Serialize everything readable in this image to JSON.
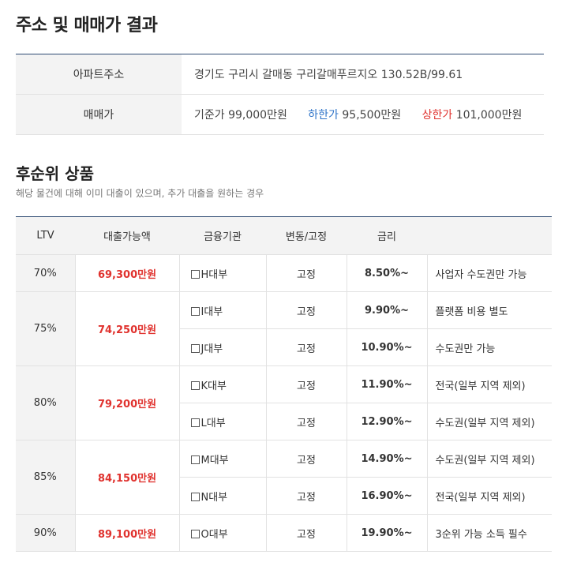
{
  "title": "주소 및 매매가 결과",
  "address_table": {
    "address_label": "아파트주소",
    "address_value": "경기도 구리시 갈매동 구리갈매푸르지오 130.52B/99.61",
    "price_label": "매매가",
    "base_label": "기준가",
    "base_value": "99,000만원",
    "low_label": "하한가",
    "low_value": "95,500만원",
    "high_label": "상한가",
    "high_value": "101,000만원"
  },
  "section": {
    "title": "후순위 상품",
    "description": "해당 물건에 대해 이미 대출이 있으며, 추가 대출을 원하는 경우"
  },
  "loan_table": {
    "headers": [
      "LTV",
      "대출가능액",
      "금융기관",
      "변동/고정",
      "금리",
      ""
    ],
    "groups": [
      {
        "ltv": "70%",
        "amount": "69,300만원",
        "rows": [
          {
            "institution": "H대부",
            "type": "고정",
            "rate": "8.50%~",
            "note": "사업자 수도권만 가능"
          }
        ]
      },
      {
        "ltv": "75%",
        "amount": "74,250만원",
        "rows": [
          {
            "institution": "I대부",
            "type": "고정",
            "rate": "9.90%~",
            "note": "플랫폼 비용 별도"
          },
          {
            "institution": "J대부",
            "type": "고정",
            "rate": "10.90%~",
            "note": "수도권만 가능"
          }
        ]
      },
      {
        "ltv": "80%",
        "amount": "79,200만원",
        "rows": [
          {
            "institution": "K대부",
            "type": "고정",
            "rate": "11.90%~",
            "note": "전국(일부 지역 제외)"
          },
          {
            "institution": "L대부",
            "type": "고정",
            "rate": "12.90%~",
            "note": "수도권(일부 지역 제외)"
          }
        ]
      },
      {
        "ltv": "85%",
        "amount": "84,150만원",
        "rows": [
          {
            "institution": "M대부",
            "type": "고정",
            "rate": "14.90%~",
            "note": "수도권(일부 지역 제외)"
          },
          {
            "institution": "N대부",
            "type": "고정",
            "rate": "16.90%~",
            "note": "전국(일부 지역 제외)"
          }
        ]
      },
      {
        "ltv": "90%",
        "amount": "89,100만원",
        "rows": [
          {
            "institution": "O대부",
            "type": "고정",
            "rate": "19.90%~",
            "note": "3순위 가능 소득 필수"
          }
        ]
      }
    ]
  },
  "colors": {
    "accent_red": "#e0322e",
    "accent_blue": "#2f74c8",
    "header_line": "#2e4a72"
  }
}
